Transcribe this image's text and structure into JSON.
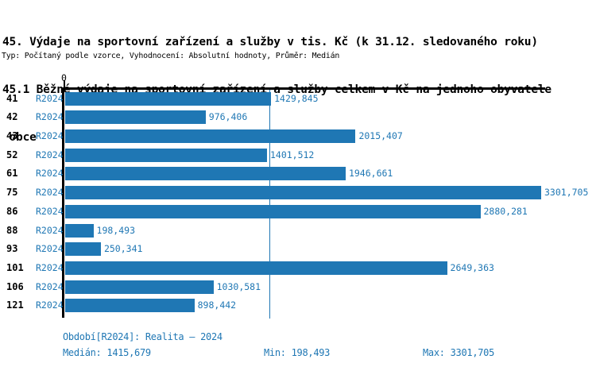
{
  "header": {
    "title_line1": "45. Výdaje na sportovní zařízení a služby v tis. Kč (k 31.12. sledovaného roku)",
    "title_line2": "45.1 Běžné výdaje na sportovní zařízení a služby celkem v Kč na jednoho obyvatele",
    "title_line3": " obce",
    "meta_line": "Typ: Počítaný podle vzorce, Vyhodnocení: Absolutní hodnoty, Průměr: Medián"
  },
  "chart": {
    "zero_label": "0"
  },
  "chart_data": {
    "type": "bar",
    "orientation": "horizontal",
    "title": "45. Výdaje na sportovní zařízení a služby v tis. Kč (k 31.12. sledovaného roku)",
    "subtitle": "45.1 Běžné výdaje na sportovní zařízení a služby celkem v Kč na jednoho obyvatele obce",
    "categories": [
      "41",
      "42",
      "43",
      "52",
      "61",
      "75",
      "86",
      "88",
      "93",
      "101",
      "106",
      "121"
    ],
    "series": [
      {
        "name": "R2024",
        "values": [
          1429.845,
          976.406,
          2015.407,
          1401.512,
          1946.661,
          3301.705,
          2880.281,
          198.493,
          250.341,
          2649.363,
          1030.581,
          898.442
        ],
        "value_labels": [
          "1429,845",
          "976,406",
          "2015,407",
          "1401,512",
          "1946,661",
          "3301,705",
          "2880,281",
          "198,493",
          "250,341",
          "2649,363",
          "1030,581",
          "898,442"
        ]
      }
    ],
    "xlabel": "",
    "ylabel": "",
    "xlim": [
      0,
      3330
    ],
    "grid": false,
    "legend": false,
    "bar_color": "#1f77b4",
    "axis_color": "#000000",
    "median_line_value": 1415.679,
    "stats": {
      "median": 1415.679,
      "min": 198.493,
      "max": 3301.705
    }
  },
  "footer": {
    "period_line": "Období[R2024]: Realita – 2024",
    "median": "Medián: 1415,679",
    "min": "Min: 198,493",
    "max": "Max: 3301,705"
  }
}
